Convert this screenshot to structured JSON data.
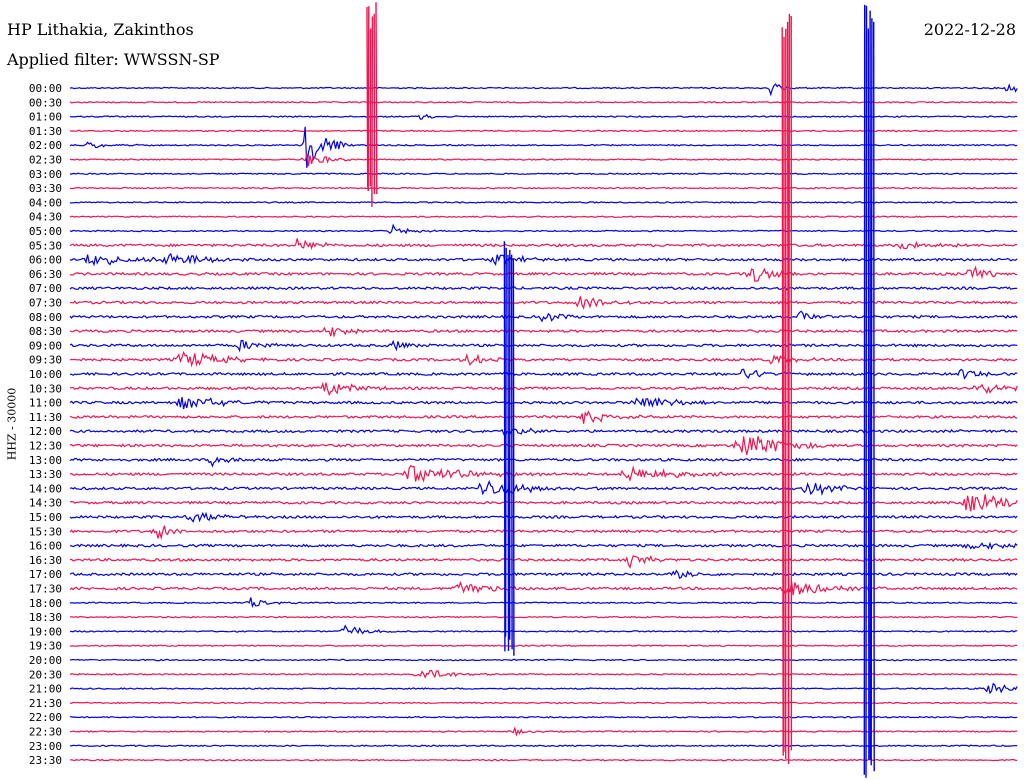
{
  "station": "HP Lithakia, Zakinthos",
  "filter": "Applied filter: WWSSN-SP",
  "date": "2022-12-28",
  "ylabel": "HHZ - 30000",
  "colors": {
    "even": "#0000e6",
    "odd": "#f0154e"
  },
  "chart_data": {
    "type": "line",
    "title": "HP Lithakia, Zakinthos",
    "subtitle": "Applied filter: WWSSN-SP",
    "date": "2022-12-28",
    "ylabel": "HHZ - 30000",
    "row_labels": [
      "00:00",
      "00:30",
      "01:00",
      "01:30",
      "02:00",
      "02:30",
      "03:00",
      "03:30",
      "04:00",
      "04:30",
      "05:00",
      "05:30",
      "06:00",
      "06:30",
      "07:00",
      "07:30",
      "08:00",
      "08:30",
      "09:00",
      "09:30",
      "10:00",
      "10:30",
      "11:00",
      "11:30",
      "12:00",
      "12:30",
      "13:00",
      "13:30",
      "14:00",
      "14:30",
      "15:00",
      "15:30",
      "16:00",
      "16:30",
      "17:00",
      "17:30",
      "18:00",
      "18:30",
      "19:00",
      "19:30",
      "20:00",
      "20:30",
      "21:00",
      "21:30",
      "22:00",
      "22:30",
      "23:00",
      "23:30"
    ],
    "trace_colors": [
      "blue",
      "red"
    ],
    "events": [
      {
        "row": 0,
        "t": 0.74,
        "amp": 1.2,
        "dur": 0.01
      },
      {
        "row": 0,
        "t": 0.99,
        "amp": 0.8,
        "dur": 0.02
      },
      {
        "row": 2,
        "t": 0.37,
        "amp": 0.6,
        "dur": 0.01
      },
      {
        "row": 4,
        "t": 0.02,
        "amp": 0.5,
        "dur": 0.03
      },
      {
        "row": 4,
        "t": 0.25,
        "amp": 4.0,
        "dur": 0.02
      },
      {
        "row": 5,
        "t": 0.25,
        "amp": 1.2,
        "dur": 0.02
      },
      {
        "row": 10,
        "t": 0.34,
        "amp": 0.8,
        "dur": 0.02
      },
      {
        "row": 11,
        "t": 0.24,
        "amp": 1.0,
        "dur": 0.02
      },
      {
        "row": 11,
        "t": 0.88,
        "amp": 0.8,
        "dur": 0.03
      },
      {
        "row": 12,
        "t": 0.02,
        "amp": 1.0,
        "dur": 0.04
      },
      {
        "row": 12,
        "t": 0.1,
        "amp": 1.2,
        "dur": 0.04
      },
      {
        "row": 12,
        "t": 0.45,
        "amp": 0.8,
        "dur": 0.03
      },
      {
        "row": 13,
        "t": 0.72,
        "amp": 1.2,
        "dur": 0.03
      },
      {
        "row": 13,
        "t": 0.95,
        "amp": 1.0,
        "dur": 0.03
      },
      {
        "row": 15,
        "t": 0.54,
        "amp": 1.0,
        "dur": 0.03
      },
      {
        "row": 16,
        "t": 0.5,
        "amp": 0.8,
        "dur": 0.02
      },
      {
        "row": 16,
        "t": 0.77,
        "amp": 0.8,
        "dur": 0.02
      },
      {
        "row": 17,
        "t": 0.27,
        "amp": 1.0,
        "dur": 0.02
      },
      {
        "row": 18,
        "t": 0.18,
        "amp": 1.0,
        "dur": 0.02
      },
      {
        "row": 18,
        "t": 0.34,
        "amp": 0.8,
        "dur": 0.02
      },
      {
        "row": 19,
        "t": 0.12,
        "amp": 1.2,
        "dur": 0.04
      },
      {
        "row": 19,
        "t": 0.42,
        "amp": 0.8,
        "dur": 0.03
      },
      {
        "row": 19,
        "t": 0.74,
        "amp": 1.0,
        "dur": 0.02
      },
      {
        "row": 20,
        "t": 0.71,
        "amp": 0.8,
        "dur": 0.03
      },
      {
        "row": 20,
        "t": 0.94,
        "amp": 0.8,
        "dur": 0.02
      },
      {
        "row": 21,
        "t": 0.27,
        "amp": 1.2,
        "dur": 0.03
      },
      {
        "row": 21,
        "t": 0.96,
        "amp": 0.8,
        "dur": 0.04
      },
      {
        "row": 22,
        "t": 0.12,
        "amp": 1.0,
        "dur": 0.04
      },
      {
        "row": 22,
        "t": 0.6,
        "amp": 1.5,
        "dur": 0.03
      },
      {
        "row": 23,
        "t": 0.54,
        "amp": 1.0,
        "dur": 0.03
      },
      {
        "row": 24,
        "t": 0.46,
        "amp": 1.0,
        "dur": 0.02
      },
      {
        "row": 25,
        "t": 0.71,
        "amp": 2.0,
        "dur": 0.04
      },
      {
        "row": 26,
        "t": 0.15,
        "amp": 0.8,
        "dur": 0.02
      },
      {
        "row": 27,
        "t": 0.36,
        "amp": 1.2,
        "dur": 0.06
      },
      {
        "row": 27,
        "t": 0.59,
        "amp": 1.0,
        "dur": 0.05
      },
      {
        "row": 28,
        "t": 0.44,
        "amp": 1.2,
        "dur": 0.05
      },
      {
        "row": 28,
        "t": 0.78,
        "amp": 1.0,
        "dur": 0.03
      },
      {
        "row": 29,
        "t": 0.95,
        "amp": 1.8,
        "dur": 0.04
      },
      {
        "row": 30,
        "t": 0.13,
        "amp": 0.8,
        "dur": 0.03
      },
      {
        "row": 31,
        "t": 0.09,
        "amp": 1.2,
        "dur": 0.02
      },
      {
        "row": 32,
        "t": 0.95,
        "amp": 0.8,
        "dur": 0.03
      },
      {
        "row": 33,
        "t": 0.59,
        "amp": 1.2,
        "dur": 0.02
      },
      {
        "row": 34,
        "t": 0.64,
        "amp": 0.8,
        "dur": 0.02
      },
      {
        "row": 35,
        "t": 0.41,
        "amp": 1.0,
        "dur": 0.04
      },
      {
        "row": 35,
        "t": 0.76,
        "amp": 1.2,
        "dur": 0.04
      },
      {
        "row": 36,
        "t": 0.19,
        "amp": 0.8,
        "dur": 0.02
      },
      {
        "row": 38,
        "t": 0.29,
        "amp": 1.0,
        "dur": 0.02
      },
      {
        "row": 41,
        "t": 0.37,
        "amp": 1.0,
        "dur": 0.03
      },
      {
        "row": 42,
        "t": 0.97,
        "amp": 0.8,
        "dur": 0.03
      },
      {
        "row": 45,
        "t": 0.47,
        "amp": 0.6,
        "dur": 0.01
      }
    ],
    "big_spikes": [
      {
        "t": 0.843,
        "row_from": 0,
        "row_to": 47,
        "color": "blue"
      },
      {
        "t": 0.756,
        "row_from": 1,
        "row_to": 47,
        "color": "red"
      },
      {
        "t": 0.318,
        "row_from": 0,
        "row_to": 7,
        "color": "red"
      },
      {
        "t": 0.463,
        "row_from": 17,
        "row_to": 39,
        "color": "blue"
      }
    ]
  }
}
